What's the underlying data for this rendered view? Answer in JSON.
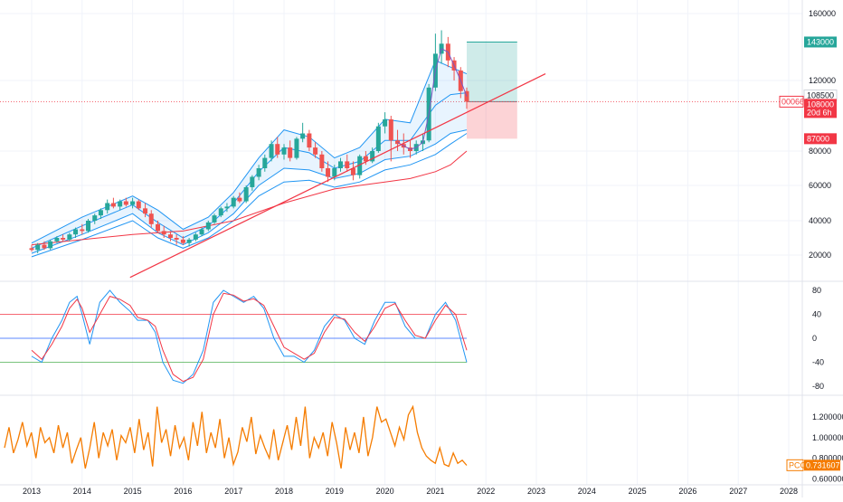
{
  "chart_data": [
    {
      "type": "candlestick",
      "title": "",
      "y_ticks": [
        "160000",
        "120000",
        "80000",
        "60000",
        "40000",
        "20000"
      ],
      "price_tags": [
        {
          "label": "143000",
          "color": "#26a69a",
          "text_color": "#ffffff"
        },
        {
          "label": "108500",
          "color": "#ffffff",
          "text_color": "#131722"
        },
        {
          "label": "108000",
          "color": "#f23645",
          "text_color": "#ffffff"
        },
        {
          "label": "20d 6h",
          "color": "#f23645",
          "text_color": "#ffffff"
        },
        {
          "label": "87000",
          "color": "#f23645",
          "text_color": "#ffffff"
        }
      ],
      "symbol_tag": "000660",
      "trade_box": {
        "entry": 108000,
        "target": 143000,
        "stop": 87000
      },
      "candles": [
        [
          2013.0,
          24000,
          26000,
          22000,
          23000
        ],
        [
          2013.12,
          23000,
          27000,
          21000,
          26000
        ],
        [
          2013.25,
          26000,
          28000,
          23000,
          24000
        ],
        [
          2013.37,
          24000,
          29000,
          23000,
          28000
        ],
        [
          2013.5,
          28000,
          31000,
          27000,
          30000
        ],
        [
          2013.62,
          30000,
          32000,
          28000,
          29000
        ],
        [
          2013.75,
          29000,
          33000,
          28000,
          32000
        ],
        [
          2013.87,
          32000,
          36000,
          30000,
          35000
        ],
        [
          2014.0,
          35000,
          38000,
          32000,
          34000
        ],
        [
          2014.12,
          34000,
          41000,
          33000,
          40000
        ],
        [
          2014.25,
          40000,
          44000,
          38000,
          43000
        ],
        [
          2014.37,
          43000,
          47000,
          41000,
          46000
        ],
        [
          2014.5,
          46000,
          52000,
          44000,
          50000
        ],
        [
          2014.62,
          50000,
          53000,
          47000,
          48000
        ],
        [
          2014.75,
          48000,
          52000,
          46000,
          51000
        ],
        [
          2014.87,
          51000,
          53000,
          48000,
          49000
        ],
        [
          2015.0,
          49000,
          53000,
          47000,
          51000
        ],
        [
          2015.12,
          51000,
          52000,
          46000,
          47000
        ],
        [
          2015.25,
          47000,
          50000,
          42000,
          44000
        ],
        [
          2015.37,
          44000,
          46000,
          36000,
          38000
        ],
        [
          2015.5,
          38000,
          40000,
          33000,
          34000
        ],
        [
          2015.62,
          34000,
          37000,
          30000,
          32000
        ],
        [
          2015.75,
          32000,
          34000,
          28000,
          30000
        ],
        [
          2015.87,
          30000,
          32000,
          26000,
          29000
        ],
        [
          2016.0,
          29000,
          31000,
          26000,
          27000
        ],
        [
          2016.12,
          27000,
          30000,
          25000,
          29000
        ],
        [
          2016.25,
          29000,
          33000,
          28000,
          32000
        ],
        [
          2016.37,
          32000,
          36000,
          31000,
          35000
        ],
        [
          2016.5,
          35000,
          40000,
          34000,
          39000
        ],
        [
          2016.62,
          39000,
          44000,
          38000,
          43000
        ],
        [
          2016.75,
          43000,
          48000,
          42000,
          47000
        ],
        [
          2016.87,
          47000,
          50000,
          45000,
          48000
        ],
        [
          2017.0,
          48000,
          54000,
          47000,
          53000
        ],
        [
          2017.12,
          53000,
          56000,
          50000,
          51000
        ],
        [
          2017.25,
          51000,
          60000,
          50000,
          59000
        ],
        [
          2017.37,
          59000,
          66000,
          57000,
          65000
        ],
        [
          2017.5,
          65000,
          72000,
          63000,
          70000
        ],
        [
          2017.62,
          70000,
          78000,
          68000,
          76000
        ],
        [
          2017.75,
          76000,
          86000,
          74000,
          84000
        ],
        [
          2017.87,
          84000,
          88000,
          76000,
          78000
        ],
        [
          2018.0,
          78000,
          84000,
          75000,
          82000
        ],
        [
          2018.12,
          82000,
          86000,
          74000,
          76000
        ],
        [
          2018.25,
          76000,
          88000,
          75000,
          87000
        ],
        [
          2018.37,
          87000,
          96000,
          85000,
          90000
        ],
        [
          2018.5,
          90000,
          92000,
          80000,
          82000
        ],
        [
          2018.62,
          82000,
          85000,
          76000,
          78000
        ],
        [
          2018.75,
          78000,
          80000,
          68000,
          70000
        ],
        [
          2018.87,
          70000,
          74000,
          62000,
          65000
        ],
        [
          2019.0,
          65000,
          72000,
          63000,
          70000
        ],
        [
          2019.12,
          70000,
          76000,
          68000,
          74000
        ],
        [
          2019.25,
          74000,
          78000,
          68000,
          70000
        ],
        [
          2019.37,
          70000,
          74000,
          63000,
          66000
        ],
        [
          2019.5,
          66000,
          78000,
          64000,
          77000
        ],
        [
          2019.62,
          77000,
          80000,
          72000,
          74000
        ],
        [
          2019.75,
          74000,
          82000,
          73000,
          80000
        ],
        [
          2019.87,
          80000,
          96000,
          79000,
          94000
        ],
        [
          2020.0,
          94000,
          102000,
          90000,
          98000
        ],
        [
          2020.12,
          98000,
          100000,
          74000,
          86000
        ],
        [
          2020.25,
          86000,
          92000,
          80000,
          84000
        ],
        [
          2020.37,
          84000,
          90000,
          78000,
          82000
        ],
        [
          2020.5,
          82000,
          86000,
          76000,
          80000
        ],
        [
          2020.62,
          80000,
          86000,
          78000,
          84000
        ],
        [
          2020.75,
          84000,
          90000,
          80000,
          86000
        ],
        [
          2020.87,
          86000,
          118000,
          85000,
          116000
        ],
        [
          2021.0,
          116000,
          148000,
          114000,
          136000
        ],
        [
          2021.12,
          136000,
          150000,
          130000,
          142000
        ],
        [
          2021.25,
          142000,
          146000,
          128000,
          132000
        ],
        [
          2021.37,
          132000,
          134000,
          120000,
          126000
        ],
        [
          2021.5,
          126000,
          128000,
          110000,
          114000
        ],
        [
          2021.62,
          114000,
          116000,
          104000,
          108000
        ]
      ],
      "bands": {
        "x": [
          2013.0,
          2014.0,
          2015.0,
          2015.5,
          2016.0,
          2016.5,
          2017.0,
          2017.5,
          2018.0,
          2018.5,
          2019.0,
          2019.5,
          2020.0,
          2020.5,
          2021.0,
          2021.3,
          2021.62
        ],
        "upper": [
          27000,
          42000,
          54000,
          46000,
          35000,
          42000,
          56000,
          76000,
          92000,
          88000,
          76000,
          82000,
          98000,
          96000,
          132000,
          128000,
          124000
        ],
        "middle": [
          24000,
          37000,
          49000,
          39000,
          30000,
          37000,
          50000,
          68000,
          82000,
          79000,
          70000,
          74000,
          86000,
          86000,
          106000,
          112000,
          113000
        ],
        "lower": [
          21000,
          32000,
          44000,
          33000,
          26000,
          33000,
          44000,
          60000,
          70000,
          69000,
          64000,
          67000,
          75000,
          77000,
          84000,
          90000,
          92000
        ],
        "lower2": [
          19000,
          29000,
          40000,
          30000,
          24000,
          30000,
          40000,
          54000,
          62000,
          63000,
          59000,
          62000,
          69000,
          72000,
          78000,
          84000,
          90000
        ]
      },
      "slow_ma": {
        "x": [
          2013.0,
          2014.0,
          2015.0,
          2016.0,
          2017.0,
          2018.0,
          2019.0,
          2019.5,
          2020.0,
          2020.5,
          2021.0,
          2021.3,
          2021.62
        ],
        "values": [
          26000,
          29000,
          32000,
          34000,
          40000,
          50000,
          58000,
          60000,
          62000,
          64000,
          68000,
          72000,
          80000
        ]
      },
      "trendline": {
        "x1": 2014.95,
        "y1": 7000,
        "x2": 2023.18,
        "y2": 124000
      },
      "current_price_line": 108000,
      "stoch_ticks": [
        "80",
        "40",
        "0",
        "-40",
        "-80"
      ],
      "stoch_levels": {
        "upper": 40,
        "middle": 0,
        "lower": -40
      },
      "stoch_series": {
        "x": [
          2013.0,
          2013.2,
          2013.4,
          2013.6,
          2013.75,
          2013.9,
          2014.0,
          2014.15,
          2014.35,
          2014.55,
          2014.75,
          2014.95,
          2015.1,
          2015.3,
          2015.45,
          2015.6,
          2015.8,
          2016.0,
          2016.2,
          2016.4,
          2016.6,
          2016.8,
          2017.0,
          2017.2,
          2017.4,
          2017.6,
          2017.8,
          2018.0,
          2018.2,
          2018.4,
          2018.6,
          2018.8,
          2019.0,
          2019.2,
          2019.4,
          2019.6,
          2019.8,
          2020.0,
          2020.2,
          2020.4,
          2020.6,
          2020.8,
          2021.0,
          2021.2,
          2021.4,
          2021.62
        ],
        "fast": [
          -30,
          -40,
          0,
          30,
          60,
          70,
          40,
          -10,
          60,
          80,
          60,
          45,
          30,
          30,
          10,
          -40,
          -70,
          -75,
          -60,
          -20,
          60,
          80,
          70,
          60,
          70,
          50,
          0,
          -30,
          -30,
          -40,
          -20,
          20,
          40,
          30,
          0,
          -10,
          30,
          60,
          60,
          20,
          0,
          0,
          40,
          60,
          30,
          -40
        ],
        "slow": [
          -20,
          -35,
          -10,
          20,
          50,
          65,
          50,
          10,
          40,
          70,
          65,
          55,
          35,
          30,
          20,
          -20,
          -60,
          -72,
          -65,
          -35,
          40,
          75,
          72,
          62,
          66,
          55,
          20,
          -15,
          -25,
          -35,
          -25,
          10,
          35,
          32,
          10,
          -5,
          20,
          50,
          58,
          30,
          5,
          0,
          30,
          55,
          40,
          -20
        ]
      },
      "pcc_ticks": [
        "1.200000",
        "1.000000",
        "0.800000",
        "0.600000"
      ],
      "pcc_tag": {
        "label": "PCC",
        "value": "0.731607"
      },
      "pcc_series": [
        0.9,
        1.1,
        0.85,
        0.98,
        1.15,
        0.92,
        1.05,
        0.8,
        1.1,
        0.95,
        1.0,
        0.85,
        1.12,
        0.9,
        1.05,
        0.75,
        0.88,
        1.0,
        0.7,
        0.9,
        1.15,
        0.8,
        1.05,
        0.92,
        1.08,
        0.78,
        1.02,
        0.95,
        1.1,
        0.85,
        1.18,
        0.88,
        1.05,
        0.72,
        1.3,
        0.95,
        1.08,
        0.82,
        1.12,
        0.9,
        1.0,
        0.78,
        1.15,
        0.92,
        1.25,
        0.85,
        1.05,
        0.9,
        1.18,
        0.8,
        1.0,
        0.74,
        0.86,
        1.1,
        0.96,
        1.2,
        0.84,
        1.02,
        0.9,
        0.8,
        1.08,
        0.78,
        0.95,
        1.12,
        0.88,
        1.2,
        0.92,
        1.3,
        0.8,
        1.0,
        0.9,
        1.05,
        0.82,
        1.15,
        0.95,
        0.7,
        1.1,
        0.88,
        1.05,
        0.85,
        1.2,
        0.82,
        1.0,
        1.3,
        1.15,
        1.18,
        1.05,
        0.92,
        1.1,
        0.98,
        1.22,
        1.3,
        1.05,
        0.9,
        0.82,
        0.78,
        0.75,
        0.9,
        0.74,
        0.72,
        0.85,
        0.75,
        0.78,
        0.73
      ],
      "x_ticks": [
        "2013",
        "2014",
        "2015",
        "2016",
        "2017",
        "2018",
        "2019",
        "2020",
        "2021",
        "2022",
        "2023",
        "2024",
        "2025",
        "2026",
        "2027",
        "2028"
      ]
    }
  ]
}
